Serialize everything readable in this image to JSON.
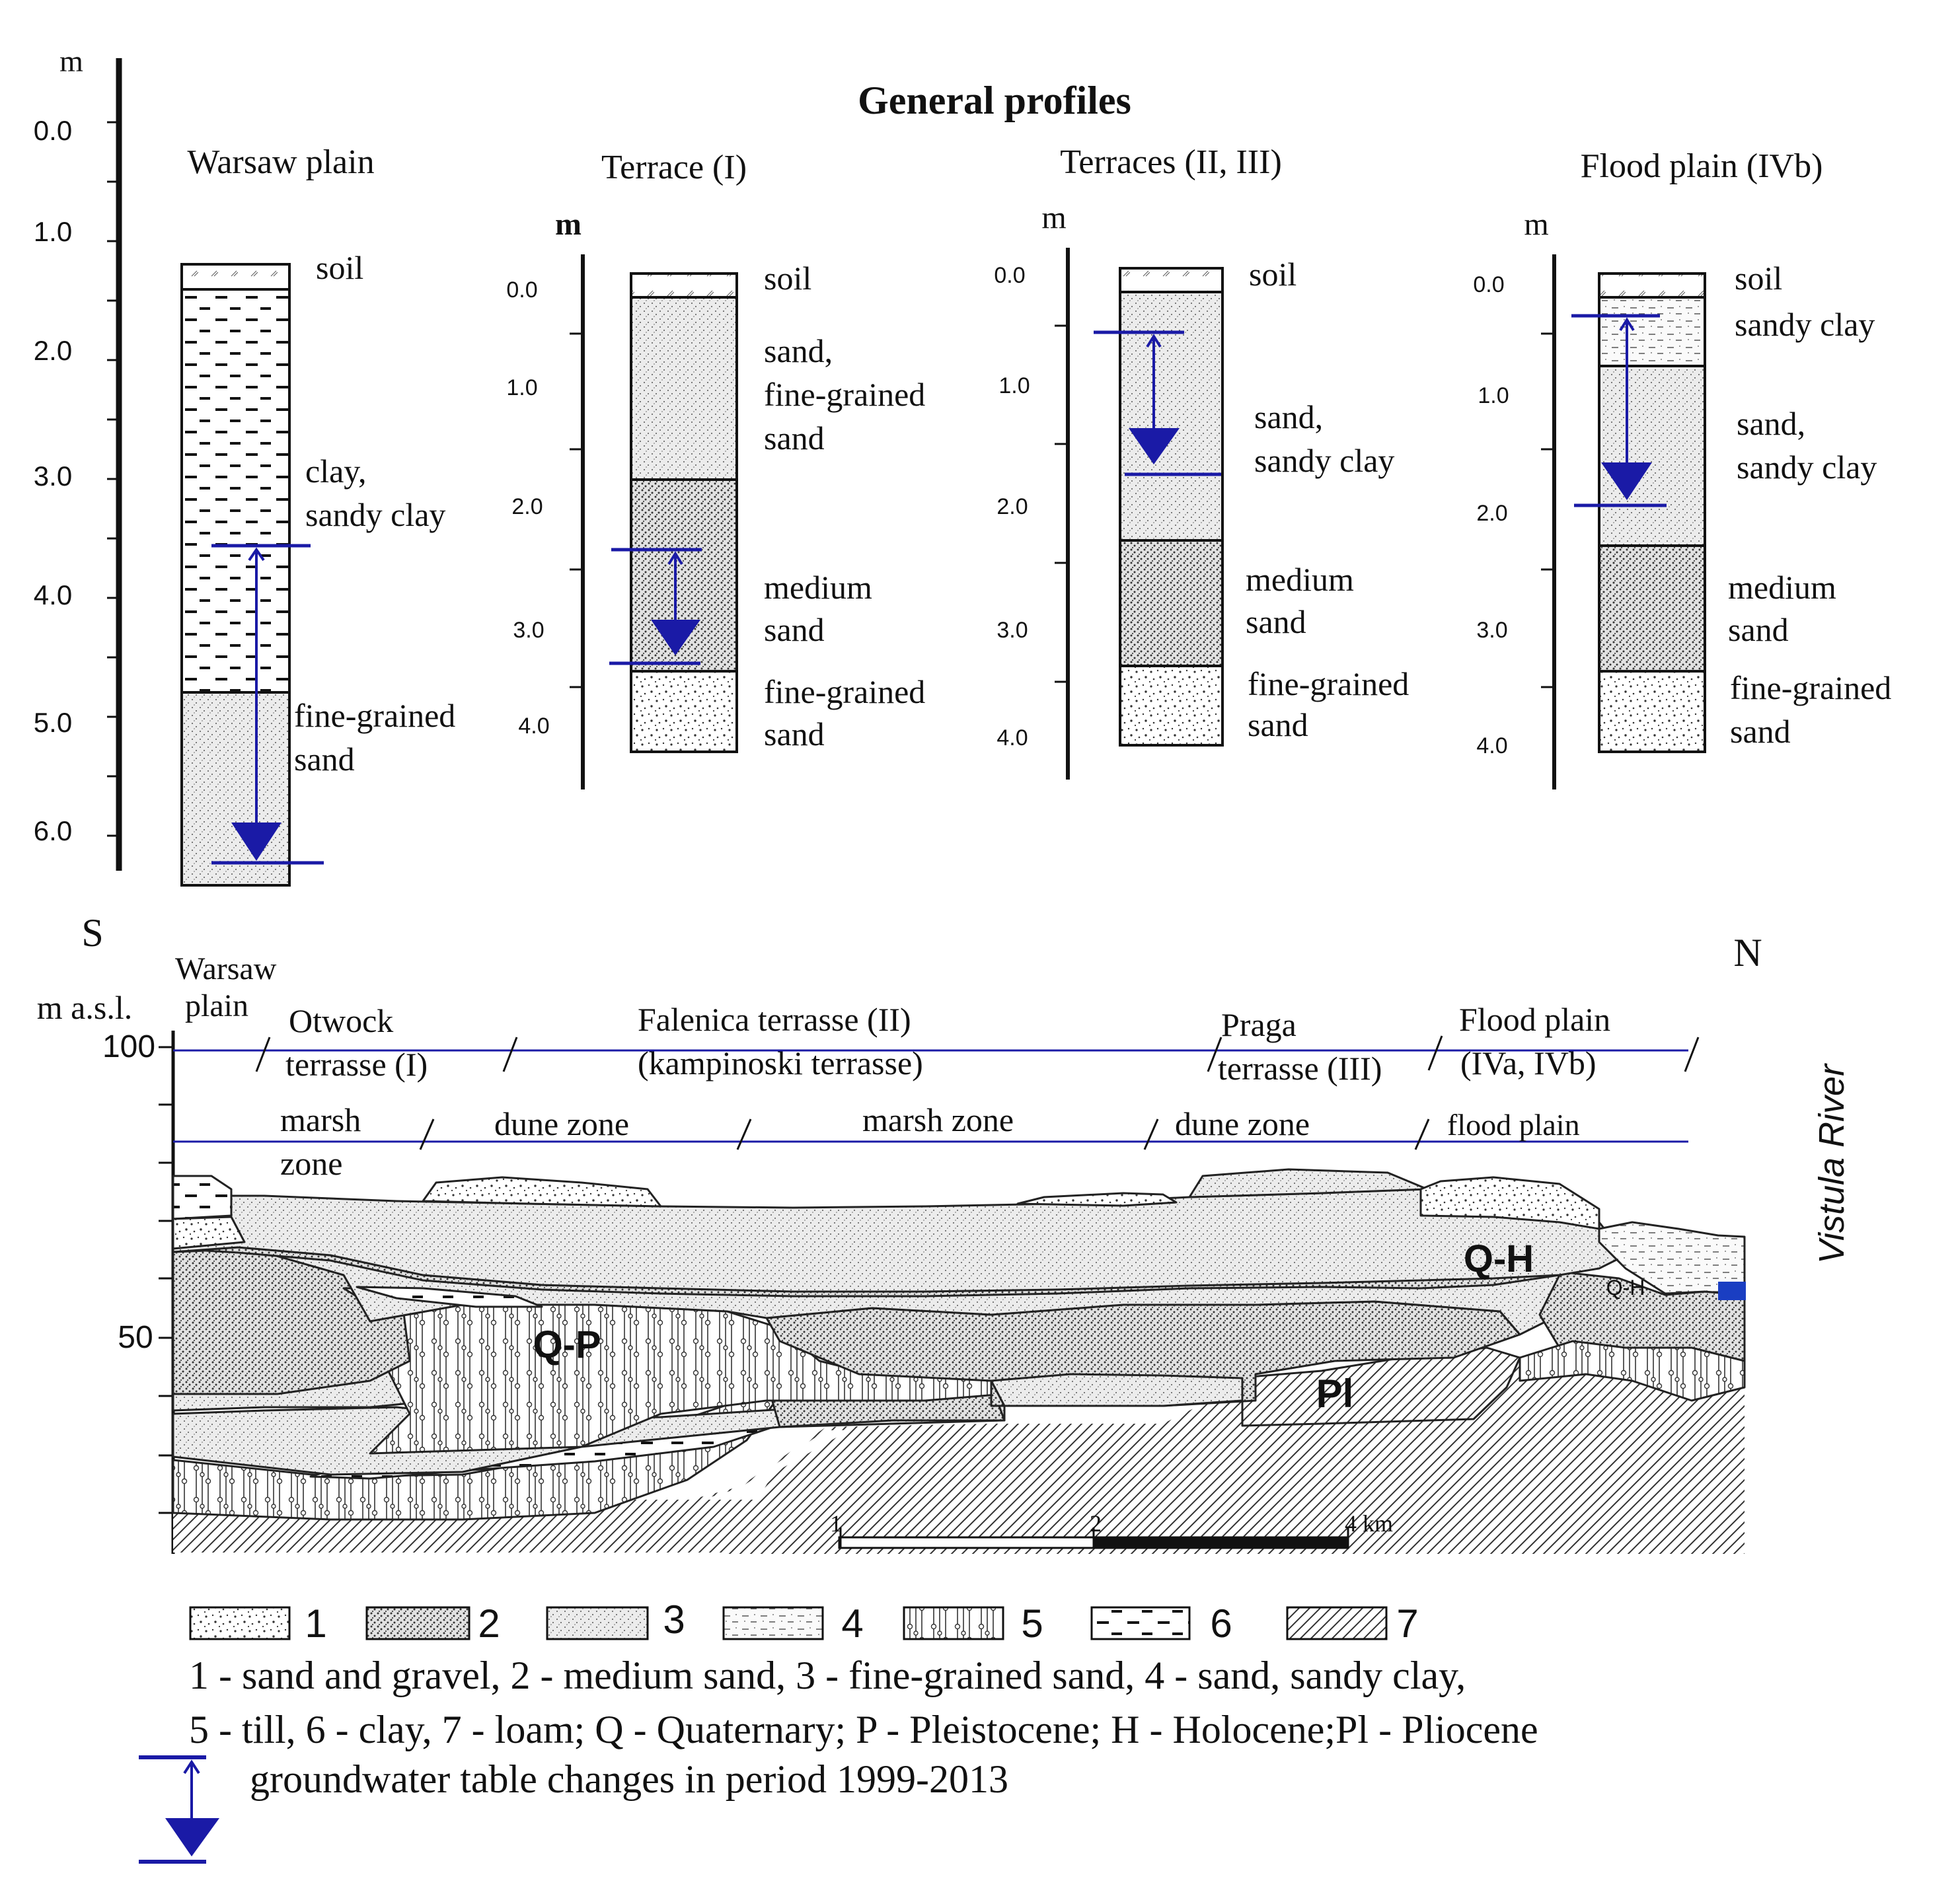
{
  "general_profiles": {
    "title": "General profiles",
    "main_axis": {
      "unit": "m",
      "ticks": [
        "0.0",
        "1.0",
        "2.0",
        "3.0",
        "4.0",
        "5.0",
        "6.0"
      ]
    },
    "profiles": [
      {
        "name": "Warsaw plain",
        "unit": "",
        "ticks": [],
        "layers": [
          "soil",
          "clay,",
          "sandy clay",
          "fine-grained",
          "sand"
        ]
      },
      {
        "name": "Terrace (I)",
        "unit": "m",
        "ticks": [
          "0.0",
          "1.0",
          "2.0",
          "3.0",
          "4.0"
        ],
        "layers": [
          "soil",
          "sand,",
          "fine-grained",
          "sand",
          "medium",
          "sand",
          "fine-grained",
          "sand"
        ]
      },
      {
        "name": "Terraces (II, III)",
        "unit": "m",
        "ticks": [
          "0.0",
          "1.0",
          "2.0",
          "3.0",
          "4.0"
        ],
        "layers": [
          "soil",
          "sand,",
          "sandy clay",
          "medium",
          "sand",
          "fine-grained",
          "sand"
        ]
      },
      {
        "name": "Flood plain (IVb)",
        "unit": "m",
        "ticks": [
          "0.0",
          "1.0",
          "2.0",
          "3.0",
          "4.0"
        ],
        "layers": [
          "soil",
          "sandy clay",
          "sand,",
          "sandy clay",
          "medium",
          "sand",
          "fine-grained",
          "sand"
        ]
      }
    ]
  },
  "cross_section": {
    "south": "S",
    "north": "N",
    "axis_unit": "m a.s.l.",
    "axis_ticks": [
      "100",
      "50"
    ],
    "river": "Vistula River",
    "units_top": [
      "Warsaw",
      "plain",
      "Otwock",
      "terrasse (I)",
      "Falenica terrasse (II)",
      "(kampinoski terrasse)",
      "Praga",
      "terrasse (III)",
      "Flood plain",
      "(IVa, IVb)"
    ],
    "zones": [
      "marsh",
      "zone",
      "dune zone",
      "marsh zone",
      "dune zone",
      "flood plain"
    ],
    "formations": [
      "Q-P",
      "Q-H",
      "Q-H",
      "Pl"
    ],
    "scale": {
      "labels": [
        "1",
        "2",
        "4 km"
      ]
    }
  },
  "legend": {
    "items": [
      "1",
      "2",
      "3",
      "4",
      "5",
      "6",
      "7"
    ],
    "line1": "1 - sand and gravel, 2 - medium sand, 3 - fine-grained sand, 4 - sand, sandy clay,",
    "line2": "5 - till, 6 - clay, 7 - loam; Q - Quaternary; P - Pleistocene; H - Holocene;Pl - Pliocene",
    "groundwater": "groundwater table changes in period 1999-2013"
  },
  "colors": {
    "groundwater": "#1a1aa6",
    "ink": "#111111"
  }
}
